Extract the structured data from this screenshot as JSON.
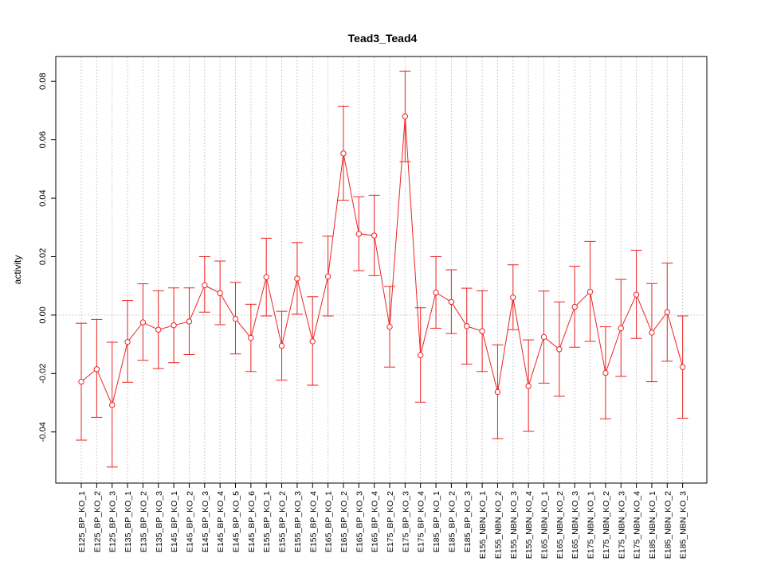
{
  "chart_data": {
    "type": "line",
    "title": "Tead3_Tead4",
    "xlabel": "",
    "ylabel": "activity",
    "ylim": [
      -0.0575,
      0.0885
    ],
    "yticks": [
      -0.04,
      -0.02,
      0.0,
      0.02,
      0.04,
      0.06,
      0.08
    ],
    "ytick_labels": [
      "-0.04",
      "-0.02",
      "0.00",
      "0.02",
      "0.04",
      "0.06",
      "0.08"
    ],
    "grid": true,
    "error_bars": true,
    "colors": {
      "series": "#ee2222",
      "grid": "#cccccc",
      "axis": "#000000"
    },
    "categories": [
      "E125_BP_KO_1",
      "E125_BP_KO_2",
      "E125_BP_KO_3",
      "E135_BP_KO_1",
      "E135_BP_KO_2",
      "E135_BP_KO_3",
      "E145_BP_KO_1",
      "E145_BP_KO_2",
      "E145_BP_KO_3",
      "E145_BP_KO_4",
      "E145_BP_KO_5",
      "E145_BP_KO_6",
      "E155_BP_KO_1",
      "E155_BP_KO_2",
      "E155_BP_KO_3",
      "E155_BP_KO_4",
      "E165_BP_KO_1",
      "E165_BP_KO_2",
      "E165_BP_KO_3",
      "E165_BP_KO_4",
      "E175_BP_KO_2",
      "E175_BP_KO_3",
      "E175_BP_KO_4",
      "E185_BP_KO_1",
      "E185_BP_KO_2",
      "E185_BP_KO_3",
      "E155_NBN_KO_1",
      "E155_NBN_KO_2",
      "E155_NBN_KO_3",
      "E155_NBN_KO_4",
      "E165_NBN_KO_1",
      "E165_NBN_KO_2",
      "E165_NBN_KO_3",
      "E175_NBN_KO_1",
      "E175_NBN_KO_2",
      "E175_NBN_KO_3",
      "E175_NBN_KO_4",
      "E185_NBN_KO_1",
      "E185_NBN_KO_2",
      "E185_NBN_KO_3"
    ],
    "values": [
      -0.0228,
      -0.0185,
      -0.0308,
      -0.0092,
      -0.0025,
      -0.005,
      -0.0035,
      -0.0022,
      0.0102,
      0.0075,
      -0.0013,
      -0.0078,
      0.013,
      -0.0105,
      0.0125,
      -0.009,
      0.0132,
      0.0553,
      0.0278,
      0.0272,
      -0.004,
      0.068,
      -0.0137,
      0.0077,
      0.0045,
      -0.0038,
      -0.0055,
      -0.0263,
      0.006,
      -0.0243,
      -0.0075,
      -0.0117,
      0.0028,
      0.008,
      -0.0198,
      -0.0045,
      0.007,
      -0.006,
      0.001,
      -0.0178
    ],
    "upper": [
      -0.0028,
      -0.0015,
      -0.0093,
      0.005,
      0.0107,
      0.0083,
      0.0093,
      0.0093,
      0.02,
      0.0185,
      0.0112,
      0.0037,
      0.0263,
      0.0013,
      0.0248,
      0.0063,
      0.027,
      0.0715,
      0.0405,
      0.041,
      0.0098,
      0.0835,
      0.0025,
      0.02,
      0.0155,
      0.0092,
      0.0083,
      -0.0102,
      0.0172,
      -0.0085,
      0.0082,
      0.0045,
      0.0167,
      0.0252,
      -0.004,
      0.0122,
      0.0222,
      0.0108,
      0.0178,
      -0.0003
    ],
    "lower": [
      -0.0428,
      -0.035,
      -0.052,
      -0.023,
      -0.0155,
      -0.0183,
      -0.0163,
      -0.0135,
      0.001,
      -0.0033,
      -0.0133,
      -0.0193,
      -0.0003,
      -0.0223,
      0.0003,
      -0.024,
      -0.0003,
      0.0393,
      0.0152,
      0.0135,
      -0.0178,
      0.0525,
      -0.0298,
      -0.0045,
      -0.0063,
      -0.0168,
      -0.0193,
      -0.0423,
      -0.005,
      -0.0398,
      -0.0233,
      -0.0278,
      -0.011,
      -0.009,
      -0.0355,
      -0.021,
      -0.008,
      -0.0228,
      -0.0158,
      -0.0353
    ]
  }
}
